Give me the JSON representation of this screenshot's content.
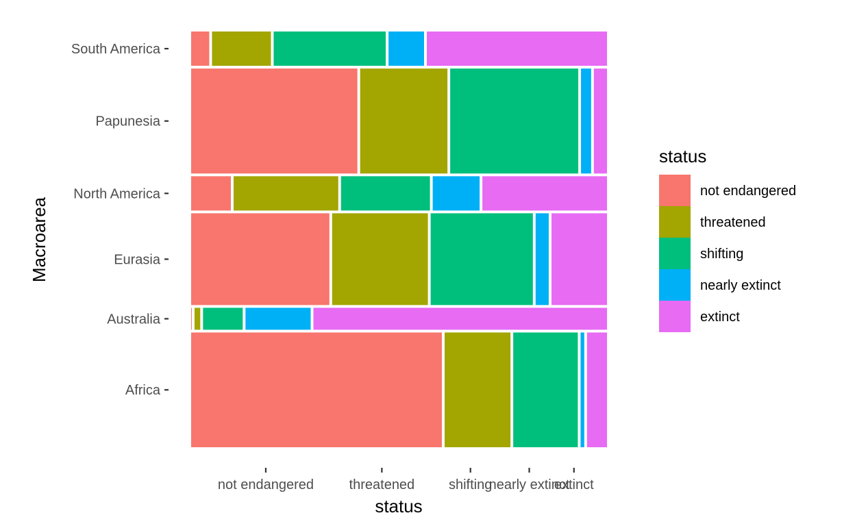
{
  "chart_data": {
    "type": "mosaic",
    "xlabel": "status",
    "ylabel": "Macroarea",
    "x_tick_labels": [
      "not endangered",
      "threatened",
      "shifting",
      "nearly extinct",
      "extinct"
    ],
    "rows": [
      "Africa",
      "Australia",
      "Eurasia",
      "North America",
      "Papunesia",
      "South America"
    ],
    "row_shares": [
      0.276,
      0.058,
      0.222,
      0.087,
      0.253,
      0.087
    ],
    "series": [
      {
        "name": "not endangered",
        "values": [
          0.591,
          0.008,
          0.329,
          0.1,
          0.394,
          0.049
        ]
      },
      {
        "name": "threatened",
        "values": [
          0.16,
          0.02,
          0.23,
          0.253,
          0.21,
          0.145
        ]
      },
      {
        "name": "shifting",
        "values": [
          0.157,
          0.1,
          0.245,
          0.216,
          0.305,
          0.27
        ]
      },
      {
        "name": "nearly extinct",
        "values": [
          0.015,
          0.16,
          0.037,
          0.117,
          0.03,
          0.09
        ]
      },
      {
        "name": "extinct",
        "values": [
          0.053,
          0.698,
          0.136,
          0.3,
          0.037,
          0.43
        ]
      }
    ],
    "xlim": [
      0,
      1
    ],
    "ylim": [
      0,
      1
    ],
    "grid": false,
    "legend": {
      "title": "status",
      "placement": "right",
      "entries": [
        "not endangered",
        "threatened",
        "shifting",
        "nearly extinct",
        "extinct"
      ]
    },
    "colors": {
      "not endangered": "#F8766D",
      "threatened": "#A3A500",
      "shifting": "#00BF7D",
      "nearly extinct": "#00B0F6",
      "extinct": "#E76BF3",
      "tick": "#333333",
      "tick_label": "#4d4d4d",
      "background": "#ffffff"
    }
  }
}
